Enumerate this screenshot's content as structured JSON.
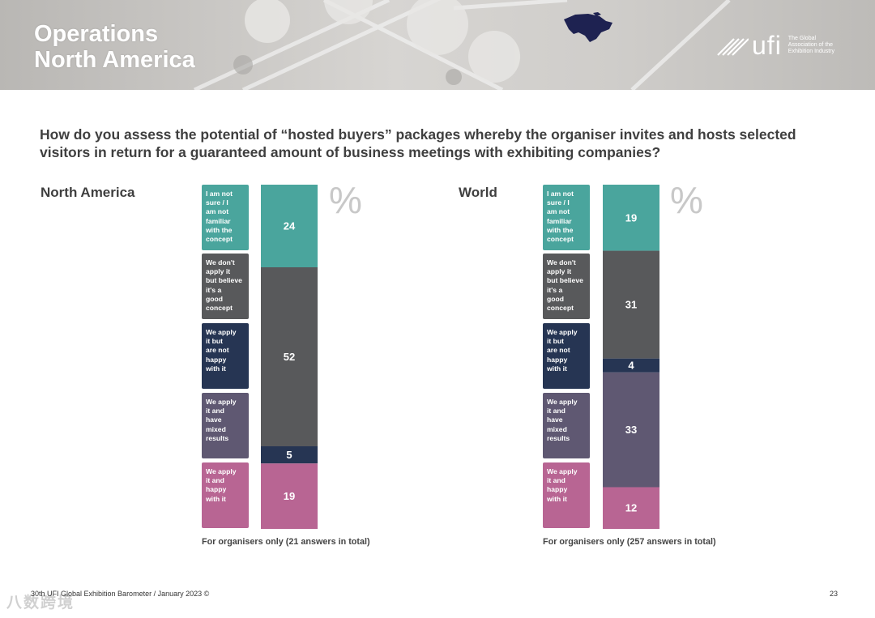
{
  "header": {
    "title_line1": "Operations",
    "title_line2": "North America",
    "logo_word": "ufi",
    "logo_tagline": [
      "The Global",
      "Association of the",
      "Exhibition Industry"
    ]
  },
  "question": "How do you assess the potential of “hosted buyers” packages whereby the organiser invites and hosts selected visitors in return for a guaranteed amount of business meetings with exhibiting companies?",
  "legend": [
    {
      "label": "I am not sure / I am not familiar with the concept",
      "lines": [
        "I am not",
        "sure / I",
        "am not",
        "familiar",
        "with the",
        "concept"
      ],
      "color": "#4aa59d"
    },
    {
      "label": "We don't apply it but believe it's a good concept",
      "lines": [
        "We don't",
        "apply it",
        "but believe",
        "it's a",
        "good",
        "concept"
      ],
      "color": "#58595b"
    },
    {
      "label": "We apply it but are not happy with it",
      "lines": [
        "We apply",
        "it but",
        "are not",
        "happy",
        "with it"
      ],
      "color": "#263553"
    },
    {
      "label": "We apply it and have mixed results",
      "lines": [
        "We apply",
        "it and",
        "have",
        "mixed",
        "results"
      ],
      "color": "#5f5872"
    },
    {
      "label": "We apply it and happy with it",
      "lines": [
        "We apply",
        "it and",
        "happy",
        "with it"
      ],
      "color": "#b86593"
    }
  ],
  "percent_symbol": "%",
  "chart_data": [
    {
      "type": "bar",
      "stacked": true,
      "title": "North America",
      "unit": "%",
      "note": "For organisers only (21 answers in total)",
      "series": [
        {
          "name": "I am not sure / I am not familiar with the concept",
          "value": 24,
          "label": "24",
          "color": "#4aa59d"
        },
        {
          "name": "We don't apply it but believe it's a good concept",
          "value": 52,
          "label": "52",
          "color": "#58595b"
        },
        {
          "name": "We apply it but are not happy with it",
          "value": 5,
          "label": "5",
          "color": "#263553"
        },
        {
          "name": "We apply it and have mixed results",
          "value": 0,
          "label": "",
          "color": "#5f5872"
        },
        {
          "name": "We apply it and happy with it",
          "value": 19,
          "label": "19",
          "color": "#b86593"
        }
      ]
    },
    {
      "type": "bar",
      "stacked": true,
      "title": "World",
      "unit": "%",
      "note": "For organisers only (257 answers in total)",
      "series": [
        {
          "name": "I am not sure / I am not familiar with the concept",
          "value": 19,
          "label": "19",
          "color": "#4aa59d"
        },
        {
          "name": "We don't apply it but believe it's a good concept",
          "value": 31,
          "label": "31",
          "color": "#58595b"
        },
        {
          "name": "We apply it but are not happy with it",
          "value": 4,
          "label": "4",
          "color": "#263553"
        },
        {
          "name": "We apply it and have mixed results",
          "value": 33,
          "label": "33",
          "color": "#5f5872"
        },
        {
          "name": "We apply it and happy with it",
          "value": 12,
          "label": "12",
          "color": "#b86593"
        }
      ]
    }
  ],
  "footer": {
    "source": "30th UFI Global Exhibition Barometer / January 2023 ©",
    "page": "23",
    "watermark": "八数跨境"
  }
}
